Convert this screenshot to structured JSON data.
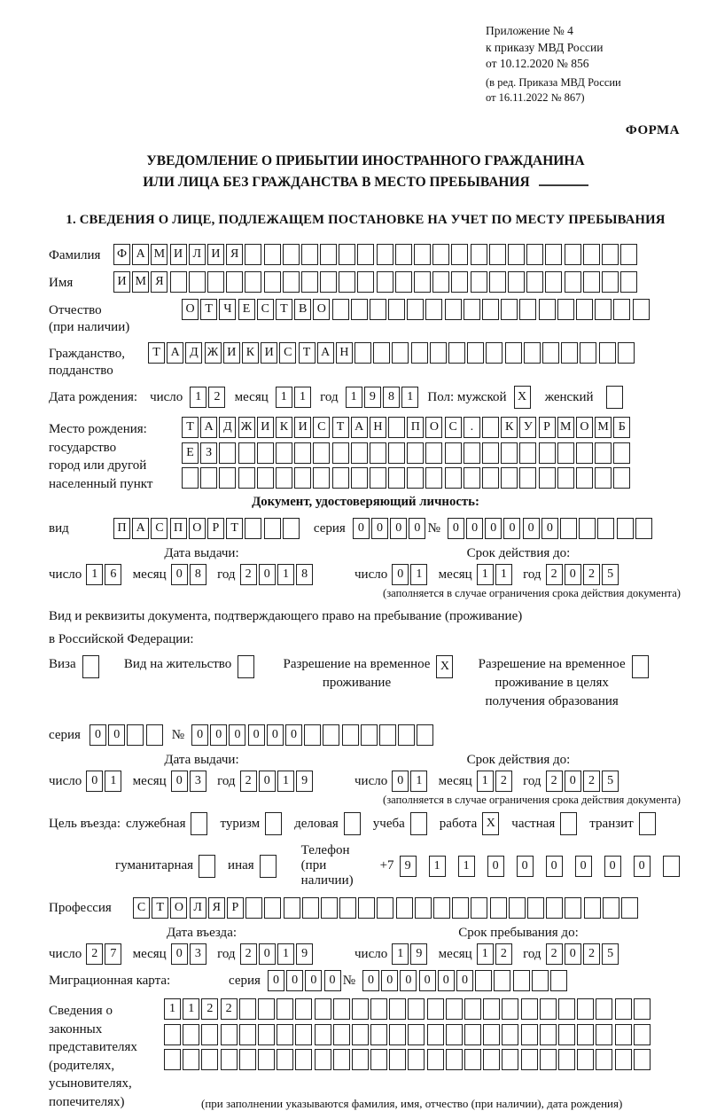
{
  "doc_refs": {
    "lines": [
      "Приложение № 4",
      "к приказу МВД России",
      "от 10.12.2020 № 856"
    ],
    "amend_lines": [
      "(в ред. Приказа МВД России",
      "от 16.11.2022 № 867)"
    ],
    "forma": "ФОРМА"
  },
  "title": {
    "line1": "УВЕДОМЛЕНИЕ О ПРИБЫТИИ ИНОСТРАННОГО ГРАЖДАНИНА",
    "line2": "ИЛИ ЛИЦА БЕЗ ГРАЖДАНСТВА В МЕСТО ПРЕБЫВАНИЯ"
  },
  "section1_title": "1. СВЕДЕНИЯ О ЛИЦЕ, ПОДЛЕЖАЩЕМ ПОСТАНОВКЕ НА УЧЕТ ПО МЕСТУ ПРЕБЫВАНИЯ",
  "person": {
    "surname": {
      "label": "Фамилия",
      "value": "ФАМИЛИЯ",
      "count": 28
    },
    "given_name": {
      "label": "Имя",
      "value": "ИМЯ",
      "count": 28
    },
    "patronymic": {
      "label": "Отчество",
      "sublabel": "(при наличии)",
      "value": "ОТЧЕСТВО",
      "count": 25
    },
    "citizenship": {
      "label": "Гражданство,",
      "sublabel": "подданство",
      "value": "ТАДЖИКИСТАН",
      "count": 26
    },
    "birth_date": {
      "label": "Дата рождения:",
      "day_label": "число",
      "day": {
        "value": "12",
        "count": 2
      },
      "month_label": "месяц",
      "month": {
        "value": "11",
        "count": 2
      },
      "year_label": "год",
      "year": {
        "value": "1981",
        "count": 4
      }
    },
    "sex": {
      "label": "Пол: мужской",
      "male": {
        "value": "X",
        "count": 1
      },
      "female_label": "женский",
      "female": {
        "value": "",
        "count": 1
      }
    },
    "birth_place": {
      "labels": [
        "Место рождения:",
        "государство",
        "город или другой",
        "населенный пункт"
      ],
      "rows": [
        {
          "value": "ТАДЖИКИСТАН ПОС. КУРМОМБ",
          "count": 24
        },
        {
          "value": "ЕЗ",
          "count": 24
        },
        {
          "value": "",
          "count": 24
        }
      ]
    }
  },
  "identity_doc": {
    "heading": "Документ, удостоверяющий личность:",
    "kind": {
      "label": "вид",
      "value": "ПАСПОРТ",
      "count": 10
    },
    "series": {
      "label": "серия",
      "value": "0000",
      "count": 4
    },
    "number": {
      "label": "№",
      "value": "000000",
      "count": 11
    },
    "issue": {
      "heading": "Дата выдачи:",
      "day_label": "число",
      "day": {
        "value": "16",
        "count": 2
      },
      "month_label": "месяц",
      "month": {
        "value": "08",
        "count": 2
      },
      "year_label": "год",
      "year": {
        "value": "2018",
        "count": 4
      }
    },
    "valid": {
      "heading": "Срок действия до:",
      "day_label": "число",
      "day": {
        "value": "01",
        "count": 2
      },
      "month_label": "месяц",
      "month": {
        "value": "11",
        "count": 2
      },
      "year_label": "год",
      "year": {
        "value": "2025",
        "count": 4
      }
    },
    "note": "(заполняется в случае ограничения срока действия документа)"
  },
  "stay_doc": {
    "intro1": "Вид и реквизиты документа, подтверждающего право на пребывание (проживание)",
    "intro2": "в Российской Федерации:",
    "visa": {
      "label": "Виза",
      "mark": {
        "value": "",
        "count": 1
      }
    },
    "residence_permit": {
      "label": "Вид на жительство",
      "mark": {
        "value": "",
        "count": 1
      }
    },
    "temp_residence": {
      "label_lines": [
        "Разрешение на временное",
        "проживание"
      ],
      "mark": {
        "value": "X",
        "count": 1
      }
    },
    "temp_residence_edu": {
      "label_lines": [
        "Разрешение на временное",
        "проживание в целях",
        "получения образования"
      ],
      "mark": {
        "value": "",
        "count": 1
      }
    },
    "series": {
      "label": "серия",
      "value": "00",
      "count": 4
    },
    "number": {
      "label": "№",
      "value": "000000",
      "count": 13
    },
    "issue": {
      "heading": "Дата выдачи:",
      "day_label": "число",
      "day": {
        "value": "01",
        "count": 2
      },
      "month_label": "месяц",
      "month": {
        "value": "03",
        "count": 2
      },
      "year_label": "год",
      "year": {
        "value": "2019",
        "count": 4
      }
    },
    "valid": {
      "heading": "Срок действия до:",
      "day_label": "число",
      "day": {
        "value": "01",
        "count": 2
      },
      "month_label": "месяц",
      "month": {
        "value": "12",
        "count": 2
      },
      "year_label": "год",
      "year": {
        "value": "2025",
        "count": 4
      }
    },
    "note": "(заполняется в случае ограничения срока действия документа)"
  },
  "visit": {
    "purpose_label": "Цель въезда:",
    "purposes_row1": [
      {
        "label": "служебная",
        "mark": {
          "value": "",
          "count": 1
        }
      },
      {
        "label": "туризм",
        "mark": {
          "value": "",
          "count": 1
        }
      },
      {
        "label": "деловая",
        "mark": {
          "value": "",
          "count": 1
        }
      },
      {
        "label": "учеба",
        "mark": {
          "value": "",
          "count": 1
        }
      },
      {
        "label": "работа",
        "mark": {
          "value": "X",
          "count": 1
        }
      },
      {
        "label": "частная",
        "mark": {
          "value": "",
          "count": 1
        }
      },
      {
        "label": "транзит",
        "mark": {
          "value": "",
          "count": 1
        }
      }
    ],
    "purposes_row2": [
      {
        "label": "гуманитарная",
        "mark": {
          "value": "",
          "count": 1
        }
      },
      {
        "label": "иная",
        "mark": {
          "value": "",
          "count": 1
        }
      }
    ],
    "phone": {
      "label": "Телефон (при наличии)",
      "prefix": "+7",
      "value": "911000000",
      "count": 10
    },
    "profession": {
      "label": "Профессия",
      "value": "СТОЛЯР",
      "count": 27
    }
  },
  "entry": {
    "date": {
      "heading": "Дата въезда:",
      "day_label": "число",
      "day": {
        "value": "27",
        "count": 2
      },
      "month_label": "месяц",
      "month": {
        "value": "03",
        "count": 2
      },
      "year_label": "год",
      "year": {
        "value": "2019",
        "count": 4
      }
    },
    "until": {
      "heading": "Срок пребывания до:",
      "day_label": "число",
      "day": {
        "value": "19",
        "count": 2
      },
      "month_label": "месяц",
      "month": {
        "value": "12",
        "count": 2
      },
      "year_label": "год",
      "year": {
        "value": "2025",
        "count": 4
      }
    },
    "migration_card": {
      "label": "Миграционная карта:",
      "series": {
        "label": "серия",
        "value": "0000",
        "count": 4
      },
      "number": {
        "label": "№",
        "value": "000000",
        "count": 11
      }
    }
  },
  "representatives": {
    "labels": [
      "Сведения о",
      "законных",
      "представителях",
      "(родителях,",
      "усыновителях,",
      "попечителях)"
    ],
    "rows": [
      {
        "value": "1122",
        "count": 26
      },
      {
        "value": "",
        "count": 26
      },
      {
        "value": "",
        "count": 26
      }
    ],
    "note": "(при заполнении указываются фамилия, имя, отчество (при наличии), дата рождения)"
  }
}
